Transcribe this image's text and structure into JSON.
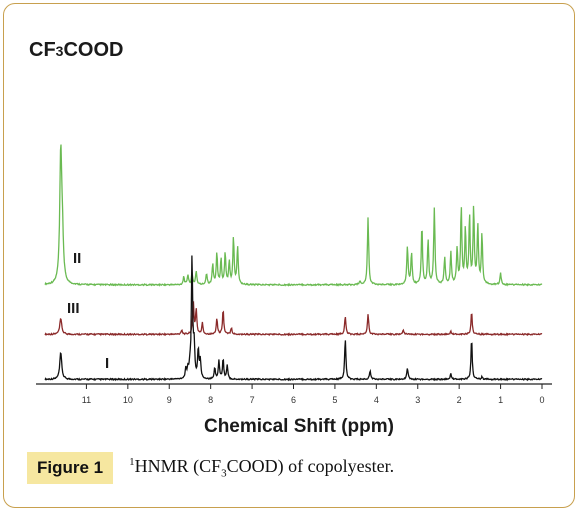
{
  "chart_data": {
    "type": "line",
    "title": "CF3COOD",
    "xlabel": "Chemical Shift (ppm)",
    "ylabel": "",
    "xlim": [
      12.0,
      0.0
    ],
    "x_reversed": true,
    "ticks": [
      11,
      10,
      9,
      8,
      7,
      6,
      5,
      4,
      3,
      2,
      1,
      0
    ],
    "grid": false,
    "series": [
      {
        "name": "II",
        "color": "#6aba52",
        "baseline_offset": 2.1,
        "peaks": [
          [
            11.62,
            2.9
          ],
          [
            11.58,
            0.9
          ],
          [
            8.65,
            0.18
          ],
          [
            8.55,
            0.22
          ],
          [
            8.45,
            0.25
          ],
          [
            8.35,
            0.3
          ],
          [
            8.1,
            0.25
          ],
          [
            7.95,
            0.45
          ],
          [
            7.85,
            0.7
          ],
          [
            7.75,
            0.55
          ],
          [
            7.65,
            0.7
          ],
          [
            7.55,
            0.5
          ],
          [
            7.45,
            1.05
          ],
          [
            7.35,
            0.85
          ],
          [
            4.4,
            0.08
          ],
          [
            4.2,
            1.5
          ],
          [
            3.25,
            0.85
          ],
          [
            3.15,
            0.7
          ],
          [
            2.9,
            1.3
          ],
          [
            2.75,
            1.0
          ],
          [
            2.6,
            1.7
          ],
          [
            2.35,
            0.6
          ],
          [
            2.2,
            0.7
          ],
          [
            2.05,
            0.8
          ],
          [
            1.95,
            1.7
          ],
          [
            1.85,
            1.2
          ],
          [
            1.75,
            1.5
          ],
          [
            1.65,
            1.7
          ],
          [
            1.55,
            1.3
          ],
          [
            1.45,
            1.1
          ],
          [
            1.0,
            0.25
          ]
        ]
      },
      {
        "name": "III",
        "color": "#8b2a2a",
        "baseline_offset": 1.0,
        "peaks": [
          [
            11.62,
            0.35
          ],
          [
            8.7,
            0.1
          ],
          [
            8.42,
            0.75
          ],
          [
            8.35,
            0.55
          ],
          [
            8.2,
            0.25
          ],
          [
            7.85,
            0.35
          ],
          [
            7.7,
            0.55
          ],
          [
            7.5,
            0.15
          ],
          [
            4.75,
            0.4
          ],
          [
            4.2,
            0.45
          ],
          [
            3.35,
            0.1
          ],
          [
            2.2,
            0.06
          ],
          [
            1.7,
            0.5
          ]
        ]
      },
      {
        "name": "I",
        "color": "#111111",
        "baseline_offset": 0.0,
        "peaks": [
          [
            11.62,
            0.6
          ],
          [
            8.6,
            0.2
          ],
          [
            8.55,
            0.22
          ],
          [
            8.5,
            0.25
          ],
          [
            8.45,
            2.7
          ],
          [
            8.4,
            0.7
          ],
          [
            8.3,
            0.65
          ],
          [
            8.25,
            0.4
          ],
          [
            7.9,
            0.25
          ],
          [
            7.8,
            0.4
          ],
          [
            7.7,
            0.45
          ],
          [
            7.6,
            0.3
          ],
          [
            4.75,
            0.9
          ],
          [
            4.15,
            0.2
          ],
          [
            3.25,
            0.25
          ],
          [
            2.2,
            0.12
          ],
          [
            1.7,
            0.9
          ],
          [
            1.45,
            0.05
          ]
        ]
      }
    ]
  },
  "figure": {
    "title_prefix": "CF",
    "title_sub": "3",
    "title_suffix": "COOD",
    "xlabel": "Chemical Shift (ppm)",
    "label_II": "II",
    "label_III": "III",
    "label_I": "I"
  },
  "caption": {
    "badge": "Figure 1",
    "sup": "1",
    "text_a": "HNMR (CF",
    "sub": "3",
    "text_b": "COOD) of copolyester."
  }
}
